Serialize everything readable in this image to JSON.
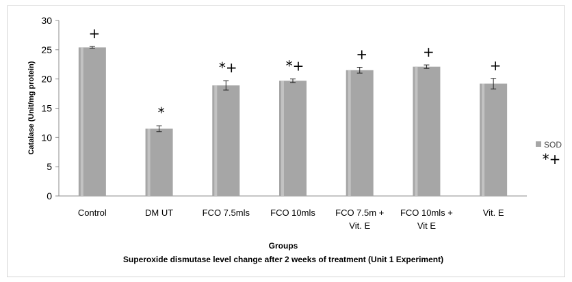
{
  "chart_data": {
    "type": "bar",
    "ylabel": "Catalase (Unit/mg protein)",
    "xlabel": "Groups",
    "caption": "Superoxide dismutase level change after 2 weeks of treatment (Unit 1 Experiment)",
    "ylim": [
      0,
      30
    ],
    "yticks": [
      "0",
      "5",
      "10",
      "15",
      "20",
      "25",
      "30"
    ],
    "grid": false,
    "legend_position": "right",
    "categories": [
      [
        "Control"
      ],
      [
        "DM UT"
      ],
      [
        "FCO 7.5mls"
      ],
      [
        "FCO 10mls"
      ],
      [
        "FCO 7.5m +",
        "Vit. E"
      ],
      [
        "FCO 10mls +",
        "Vit E"
      ],
      [
        "Vit. E"
      ]
    ],
    "series": [
      {
        "name": "SOD",
        "color": "#a6a6a6",
        "values": [
          25.4,
          11.5,
          18.9,
          19.7,
          21.5,
          22.1,
          19.2
        ],
        "errors": [
          0.15,
          0.5,
          0.8,
          0.3,
          0.5,
          0.3,
          0.9
        ]
      }
    ],
    "annotations": [
      "+",
      "*",
      "*+",
      "*+",
      "+",
      "+",
      "+"
    ],
    "legend_extra": "*+"
  }
}
